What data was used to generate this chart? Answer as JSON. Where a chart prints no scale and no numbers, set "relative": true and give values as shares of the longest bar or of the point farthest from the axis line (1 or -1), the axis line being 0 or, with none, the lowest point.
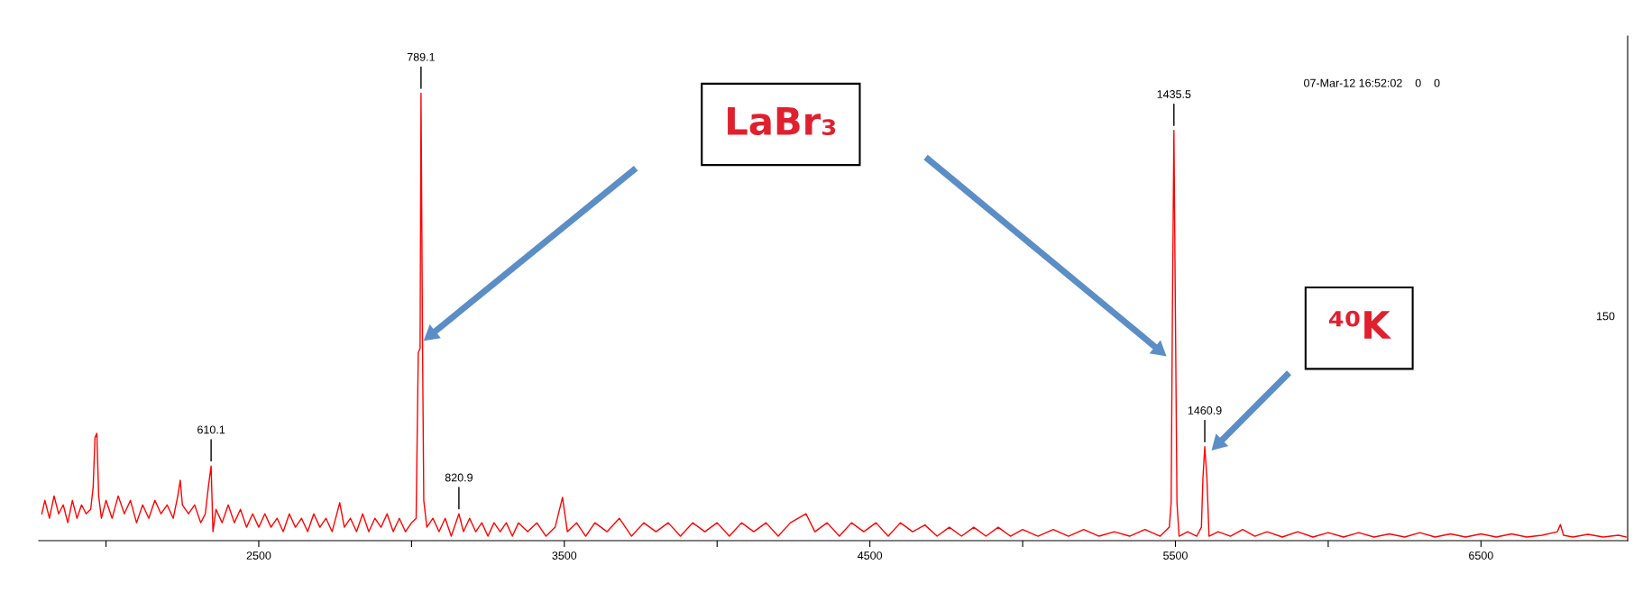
{
  "chart_data": {
    "type": "line",
    "relative": true,
    "grid": false,
    "marker": "none",
    "line_style": "solid",
    "xlim": [
      1780,
      6980
    ],
    "xticks": [
      {
        "value": 2000,
        "label": null
      },
      2500,
      {
        "value": 3000,
        "label": null
      },
      3500,
      {
        "value": 4000,
        "label": null
      },
      4500,
      {
        "value": 5000,
        "label": null
      },
      5500,
      {
        "value": 6000,
        "label": null
      },
      6500
    ],
    "series": [
      {
        "color": "#ff0000",
        "x": [
          1790,
          1800,
          1815,
          1830,
          1845,
          1860,
          1875,
          1890,
          1905,
          1920,
          1935,
          1950,
          1958,
          1964,
          1970,
          1976,
          1985,
          2000,
          2020,
          2040,
          2060,
          2080,
          2100,
          2120,
          2140,
          2160,
          2180,
          2200,
          2220,
          2235,
          2243,
          2250,
          2270,
          2290,
          2310,
          2325,
          2335,
          2344,
          2350,
          2360,
          2380,
          2400,
          2420,
          2440,
          2460,
          2480,
          2500,
          2520,
          2540,
          2560,
          2580,
          2600,
          2620,
          2640,
          2660,
          2680,
          2700,
          2720,
          2740,
          2765,
          2780,
          2800,
          2820,
          2840,
          2860,
          2880,
          2900,
          2920,
          2940,
          2960,
          2980,
          3000,
          3015,
          3022,
          3028,
          3031,
          3036,
          3040,
          3050,
          3070,
          3090,
          3110,
          3130,
          3155,
          3170,
          3190,
          3210,
          3230,
          3250,
          3270,
          3290,
          3310,
          3330,
          3350,
          3380,
          3410,
          3440,
          3470,
          3494,
          3510,
          3540,
          3570,
          3600,
          3640,
          3680,
          3720,
          3760,
          3800,
          3840,
          3880,
          3920,
          3960,
          4000,
          4040,
          4080,
          4120,
          4160,
          4200,
          4240,
          4291,
          4320,
          4360,
          4400,
          4440,
          4480,
          4520,
          4560,
          4600,
          4640,
          4680,
          4720,
          4760,
          4800,
          4840,
          4880,
          4920,
          4960,
          5000,
          5050,
          5100,
          5150,
          5200,
          5250,
          5300,
          5350,
          5400,
          5450,
          5480,
          5486,
          5490,
          5495,
          5500,
          5505,
          5512,
          5540,
          5570,
          5585,
          5590,
          5596,
          5603,
          5610,
          5640,
          5680,
          5720,
          5760,
          5800,
          5850,
          5900,
          5950,
          6000,
          6050,
          6100,
          6150,
          6200,
          6250,
          6300,
          6350,
          6400,
          6450,
          6500,
          6550,
          6600,
          6650,
          6700,
          6750,
          6760,
          6770,
          6800,
          6850,
          6900,
          6950,
          6975
        ],
        "values": [
          0.06,
          0.09,
          0.05,
          0.1,
          0.06,
          0.08,
          0.04,
          0.09,
          0.05,
          0.08,
          0.06,
          0.07,
          0.12,
          0.23,
          0.24,
          0.1,
          0.05,
          0.09,
          0.05,
          0.1,
          0.06,
          0.09,
          0.04,
          0.08,
          0.05,
          0.09,
          0.06,
          0.08,
          0.05,
          0.1,
          0.135,
          0.08,
          0.06,
          0.08,
          0.04,
          0.06,
          0.12,
          0.167,
          0.02,
          0.07,
          0.04,
          0.08,
          0.04,
          0.07,
          0.03,
          0.06,
          0.03,
          0.06,
          0.03,
          0.05,
          0.02,
          0.06,
          0.03,
          0.05,
          0.02,
          0.06,
          0.03,
          0.05,
          0.02,
          0.085,
          0.03,
          0.05,
          0.02,
          0.06,
          0.02,
          0.05,
          0.03,
          0.06,
          0.02,
          0.05,
          0.02,
          0.04,
          0.05,
          0.42,
          0.43,
          1.0,
          0.43,
          0.09,
          0.03,
          0.05,
          0.02,
          0.05,
          0.01,
          0.06,
          0.02,
          0.05,
          0.02,
          0.04,
          0.01,
          0.04,
          0.02,
          0.04,
          0.01,
          0.04,
          0.02,
          0.04,
          0.01,
          0.03,
          0.097,
          0.02,
          0.04,
          0.01,
          0.04,
          0.02,
          0.05,
          0.01,
          0.04,
          0.02,
          0.04,
          0.01,
          0.04,
          0.02,
          0.04,
          0.01,
          0.04,
          0.02,
          0.04,
          0.01,
          0.04,
          0.06,
          0.02,
          0.04,
          0.01,
          0.04,
          0.02,
          0.04,
          0.01,
          0.04,
          0.02,
          0.035,
          0.01,
          0.03,
          0.01,
          0.03,
          0.01,
          0.03,
          0.01,
          0.025,
          0.01,
          0.025,
          0.01,
          0.025,
          0.01,
          0.02,
          0.01,
          0.025,
          0.01,
          0.03,
          0.085,
          0.5,
          0.917,
          0.5,
          0.085,
          0.01,
          0.02,
          0.01,
          0.03,
          0.14,
          0.21,
          0.14,
          0.01,
          0.02,
          0.01,
          0.025,
          0.01,
          0.02,
          0.008,
          0.02,
          0.008,
          0.018,
          0.008,
          0.018,
          0.008,
          0.015,
          0.008,
          0.018,
          0.008,
          0.015,
          0.008,
          0.015,
          0.008,
          0.015,
          0.008,
          0.012,
          0.02,
          0.036,
          0.012,
          0.008,
          0.014,
          0.008,
          0.012,
          0.008
        ]
      }
    ],
    "annotations": [
      "07-Mar-12 16:52:02    0    0",
      "150",
      {
        "text": "789.1",
        "x": 3031,
        "y": 1.0
      },
      {
        "text": "610.1",
        "x": 2344,
        "y": 0.167
      },
      {
        "text": "820.9",
        "x": 3155,
        "y": 0.06
      },
      {
        "text": "1435.5",
        "x": 5495,
        "y": 0.917
      },
      {
        "text": "1460.9",
        "x": 5596,
        "y": 0.21
      },
      "LaBr₃",
      "⁴⁰K"
    ]
  }
}
